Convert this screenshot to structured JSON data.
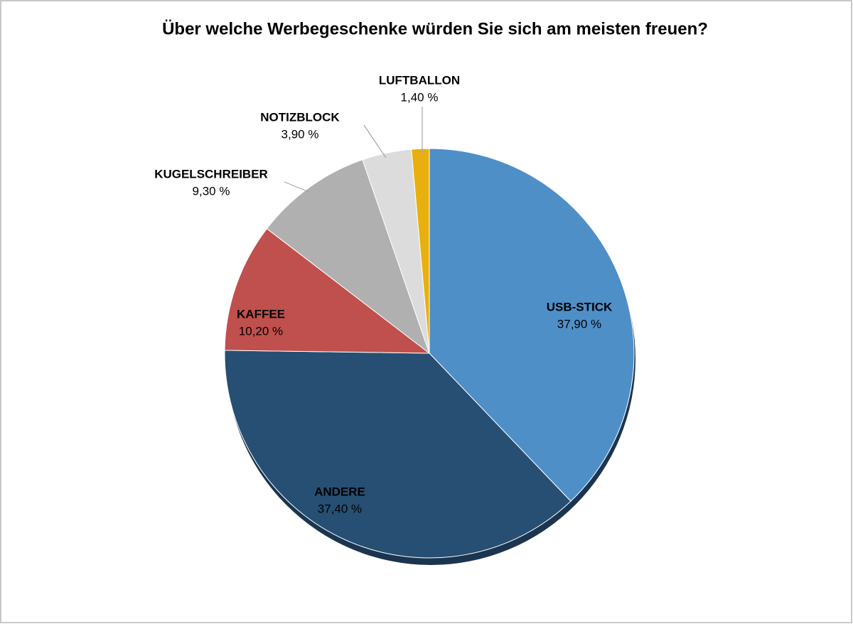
{
  "chart_data": {
    "type": "pie",
    "title": "Über welche Werbegeschenke würden Sie sich am meisten freuen?",
    "categories": [
      "USB-STICK",
      "ANDERE",
      "KAFFEE",
      "KUGELSCHREIBER",
      "NOTIZBLOCK",
      "LUFTBALLON"
    ],
    "values": [
      37.9,
      37.4,
      10.2,
      9.3,
      3.9,
      1.4
    ],
    "value_labels": [
      "37,90 %",
      "37,40 %",
      "10,20 %",
      "9,30 %",
      "3,90 %",
      "1,40 %"
    ],
    "colors": [
      "#4f8fc8",
      "#264f73",
      "#c0504d",
      "#b0b0b0",
      "#dcdcdc",
      "#e8b00f"
    ]
  }
}
